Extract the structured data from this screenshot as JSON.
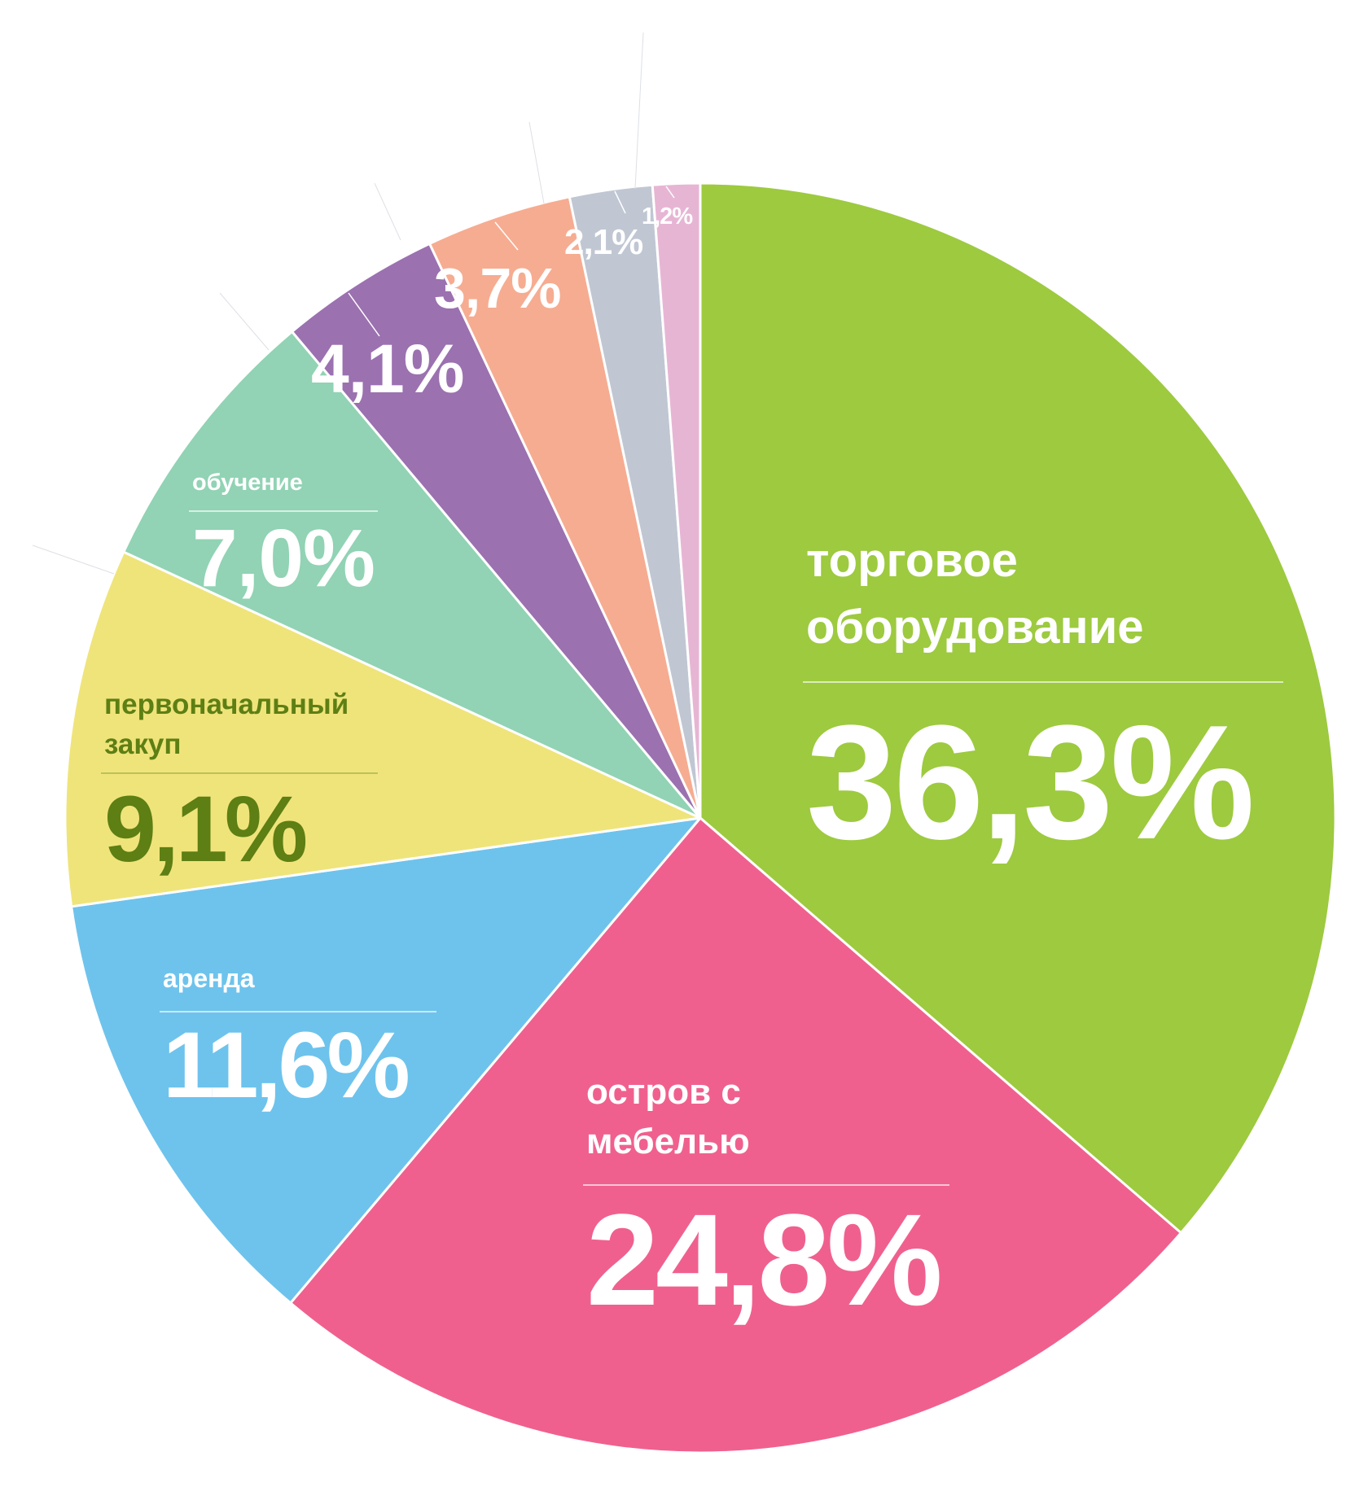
{
  "chart_data": {
    "type": "pie",
    "title": "",
    "start_angle_deg": 0,
    "direction": "clockwise",
    "slices": [
      {
        "label": "торговое оборудование",
        "value": 36.3,
        "display": "36,3%",
        "color": "#9dca3f",
        "text_color": "#ffffff"
      },
      {
        "label": "остров с мебелью",
        "value": 24.8,
        "display": "24,8%",
        "color": "#f0608e",
        "text_color": "#ffffff"
      },
      {
        "label": "аренда",
        "value": 11.6,
        "display": "11,6%",
        "color": "#6ec3ec",
        "text_color": "#ffffff"
      },
      {
        "label": "первоначальный закуп",
        "value": 9.1,
        "display": "9,1%",
        "color": "#efe47a",
        "text_color": "#5d7f14"
      },
      {
        "label": "обучение",
        "value": 7.0,
        "display": "7,0%",
        "color": "#91d3b4",
        "text_color": "#ffffff"
      },
      {
        "label": "",
        "value": 4.1,
        "display": "4,1%",
        "color": "#9b71b0",
        "text_color": "#ffffff"
      },
      {
        "label": "",
        "value": 3.7,
        "display": "3,7%",
        "color": "#f6ac91",
        "text_color": "#ffffff"
      },
      {
        "label": "",
        "value": 2.1,
        "display": "2,1%",
        "color": "#c0c7d3",
        "text_color": "#ffffff"
      },
      {
        "label": "",
        "value": 1.2,
        "display": "1,2%",
        "color": "#e7b5d4",
        "text_color": "#ffffff"
      }
    ]
  }
}
